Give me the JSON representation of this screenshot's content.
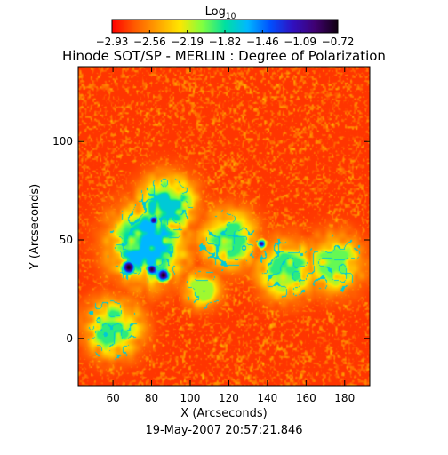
{
  "chart_data": {
    "type": "heatmap",
    "title": "Hinode SOT/SP - MERLIN : Degree of Polarization",
    "colorbar": {
      "label_main": "Log",
      "label_sub": "10",
      "tick_labels": [
        "−2.93",
        "−2.56",
        "−2.19",
        "−1.82",
        "−1.46",
        "−1.09",
        "−0.72"
      ],
      "range": [
        -2.93,
        -0.72
      ],
      "colormap": [
        "#ff0000",
        "#ff5a00",
        "#ffa000",
        "#ffe600",
        "#80ff40",
        "#00e0a0",
        "#00b8ff",
        "#0050ff",
        "#3010c0",
        "#400070",
        "#100010"
      ]
    },
    "xlabel": "X (Arcseconds)",
    "ylabel": "Y (Arcseconds)",
    "xlim": [
      42,
      193
    ],
    "ylim": [
      -24,
      138
    ],
    "x_ticks": [
      60,
      80,
      100,
      120,
      140,
      160,
      180
    ],
    "y_ticks": [
      0,
      50,
      100
    ],
    "x_tick_labels": [
      "60",
      "80",
      "100",
      "120",
      "140",
      "160",
      "180"
    ],
    "y_tick_labels": [
      "0",
      "50",
      "100"
    ],
    "features": [
      {
        "kind": "pore",
        "x": 68,
        "y": 36,
        "r": 4.5,
        "level": -0.72
      },
      {
        "kind": "pore",
        "x": 80,
        "y": 35,
        "r": 3.5,
        "level": -0.8
      },
      {
        "kind": "pore",
        "x": 86,
        "y": 32,
        "r": 4,
        "level": -0.72
      },
      {
        "kind": "pore",
        "x": 81,
        "y": 60,
        "r": 3,
        "level": -0.9
      },
      {
        "kind": "pore",
        "x": 137,
        "y": 48,
        "r": 2.5,
        "level": -1.0
      },
      {
        "kind": "plage",
        "x": 78,
        "y": 48,
        "r": 16,
        "level": -1.6
      },
      {
        "kind": "plage",
        "x": 88,
        "y": 68,
        "r": 12,
        "level": -1.7
      },
      {
        "kind": "plage",
        "x": 120,
        "y": 50,
        "r": 12,
        "level": -1.9
      },
      {
        "kind": "plage",
        "x": 150,
        "y": 35,
        "r": 12,
        "level": -1.9
      },
      {
        "kind": "plage",
        "x": 175,
        "y": 38,
        "r": 12,
        "level": -2.0
      },
      {
        "kind": "plage",
        "x": 60,
        "y": 5,
        "r": 12,
        "level": -1.9
      },
      {
        "kind": "plage",
        "x": 106,
        "y": 25,
        "r": 8,
        "level": -2.1
      }
    ],
    "background_level": -2.8
  },
  "footer": {
    "date_label": "19-May-2007 20:57:21.846"
  }
}
